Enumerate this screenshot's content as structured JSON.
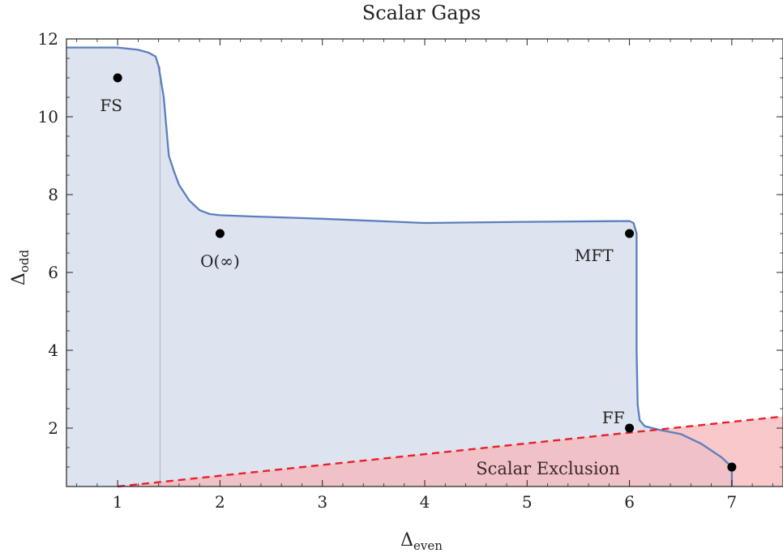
{
  "chart_data": {
    "type": "area",
    "title": "Scalar Gaps",
    "xlabel": {
      "main": "Δ",
      "sub": "even"
    },
    "ylabel": {
      "main": "Δ",
      "sub": "odd"
    },
    "xlim": [
      0.5,
      7.5
    ],
    "ylim": [
      0.5,
      12
    ],
    "xticks": [
      1,
      2,
      3,
      4,
      5,
      6,
      7
    ],
    "yticks": [
      2,
      4,
      6,
      8,
      10,
      12
    ],
    "grid": false,
    "colors": {
      "allowed_fill": "#dde3ef",
      "boundary": "#5b7fbd",
      "exclusion_fill": "#f5b5b8",
      "exclusion_line": "#e8202a",
      "points": "#000000",
      "vline": "#a9b4c8"
    },
    "allowed_region_boundary": [
      [
        0.5,
        11.78
      ],
      [
        1.0,
        11.78
      ],
      [
        1.2,
        11.72
      ],
      [
        1.3,
        11.65
      ],
      [
        1.37,
        11.55
      ],
      [
        1.4,
        11.3
      ],
      [
        1.45,
        10.5
      ],
      [
        1.5,
        9.0
      ],
      [
        1.55,
        8.6
      ],
      [
        1.6,
        8.25
      ],
      [
        1.7,
        7.85
      ],
      [
        1.8,
        7.6
      ],
      [
        1.9,
        7.5
      ],
      [
        2.0,
        7.47
      ],
      [
        2.3,
        7.44
      ],
      [
        3.0,
        7.38
      ],
      [
        4.0,
        7.27
      ],
      [
        5.0,
        7.3
      ],
      [
        6.0,
        7.32
      ],
      [
        6.04,
        7.27
      ],
      [
        6.07,
        7.0
      ],
      [
        6.07,
        4.0
      ],
      [
        6.08,
        2.6
      ],
      [
        6.1,
        2.2
      ],
      [
        6.15,
        2.05
      ],
      [
        6.3,
        1.95
      ],
      [
        6.5,
        1.85
      ],
      [
        6.7,
        1.6
      ],
      [
        6.9,
        1.25
      ],
      [
        7.0,
        1.0
      ],
      [
        7.0,
        0.5
      ]
    ],
    "vertical_line_x": 1.414,
    "exclusion_line": {
      "x": [
        1.0,
        7.5
      ],
      "y": [
        0.5,
        2.3
      ]
    },
    "points": [
      {
        "label": "FS",
        "x": 1,
        "y": 11
      },
      {
        "label": "O(∞)",
        "x": 2,
        "y": 7
      },
      {
        "label": "MFT",
        "x": 6,
        "y": 7
      },
      {
        "label": "FF",
        "x": 6,
        "y": 2
      },
      {
        "label": "",
        "x": 7,
        "y": 1
      }
    ],
    "annotation": "Scalar Exclusion"
  }
}
